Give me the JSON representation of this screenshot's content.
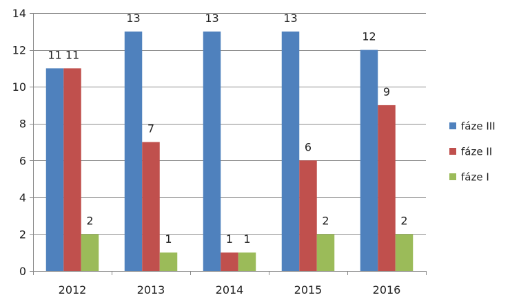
{
  "chart_data": {
    "type": "bar",
    "title": "",
    "xlabel": "",
    "ylabel": "",
    "categories": [
      "2012",
      "2013",
      "2014",
      "2015",
      "2016"
    ],
    "series": [
      {
        "name": "fáze III",
        "color": "#4F81BD",
        "values": [
          11,
          13,
          13,
          13,
          12
        ]
      },
      {
        "name": "fáze II",
        "color": "#C0504D",
        "values": [
          11,
          7,
          1,
          6,
          9
        ]
      },
      {
        "name": "fáze I",
        "color": "#9BBB59",
        "values": [
          2,
          1,
          1,
          2,
          2
        ]
      }
    ],
    "ylim": [
      0,
      14
    ],
    "yticks": [
      0,
      2,
      4,
      6,
      8,
      10,
      12,
      14
    ],
    "grid": true,
    "legend_position": "right"
  }
}
